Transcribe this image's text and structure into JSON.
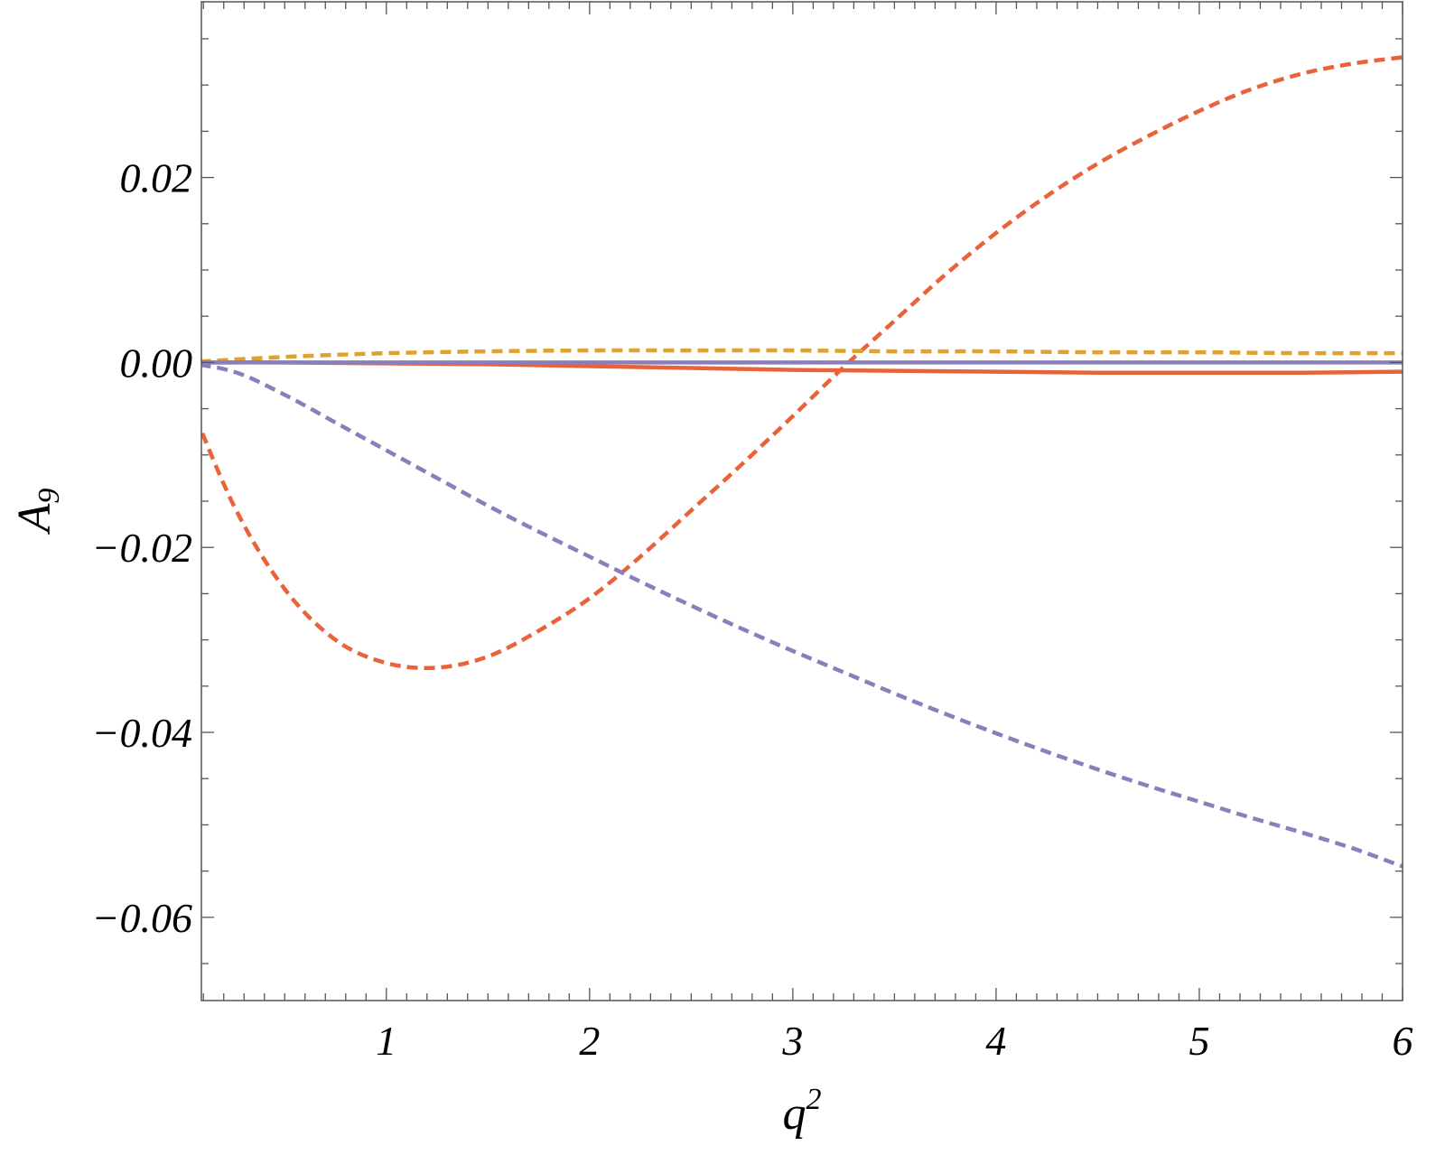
{
  "chart_data": {
    "type": "line",
    "xlabel": "q",
    "xlabel_sup": "2",
    "ylabel": "A",
    "ylabel_sub": "9",
    "xlim": [
      0.09,
      6.0
    ],
    "ylim": [
      -0.069,
      0.039
    ],
    "x_ticks": [
      {
        "value": 1,
        "label": "1"
      },
      {
        "value": 2,
        "label": "2"
      },
      {
        "value": 3,
        "label": "3"
      },
      {
        "value": 4,
        "label": "4"
      },
      {
        "value": 5,
        "label": "5"
      },
      {
        "value": 6,
        "label": "6"
      }
    ],
    "y_ticks": [
      {
        "value": 0.02,
        "label": "0.02"
      },
      {
        "value": 0.0,
        "label": "0.00"
      },
      {
        "value": -0.02,
        "label": "−0.02"
      },
      {
        "value": -0.04,
        "label": "−0.04"
      },
      {
        "value": -0.06,
        "label": "−0.06"
      }
    ],
    "grid": false,
    "series": [
      {
        "color": "#e8623a",
        "style": "dashed",
        "x": [
          0.0,
          0.25,
          0.5,
          0.75,
          1.0,
          1.25,
          1.5,
          1.75,
          2.0,
          2.25,
          2.5,
          2.75,
          3.0,
          3.25,
          3.5,
          3.75,
          4.0,
          4.25,
          4.5,
          4.75,
          5.0,
          5.25,
          5.5,
          5.75,
          6.0
        ],
        "y": [
          -0.0025,
          -0.0155,
          -0.0245,
          -0.03,
          -0.0325,
          -0.033,
          -0.0318,
          -0.029,
          -0.0255,
          -0.021,
          -0.016,
          -0.011,
          -0.0058,
          -0.0005,
          0.0045,
          0.0095,
          0.014,
          0.018,
          0.0215,
          0.0245,
          0.0272,
          0.0295,
          0.0312,
          0.0323,
          0.033
        ]
      },
      {
        "color": "#8a7fbc",
        "style": "dashed",
        "x": [
          0.0,
          0.25,
          0.5,
          0.75,
          1.0,
          1.25,
          1.5,
          1.75,
          2.0,
          2.25,
          2.5,
          2.75,
          3.0,
          3.25,
          3.5,
          3.75,
          4.0,
          4.25,
          4.5,
          4.75,
          5.0,
          5.25,
          5.5,
          5.75,
          6.0
        ],
        "y": [
          0.0,
          -0.001,
          -0.0035,
          -0.0065,
          -0.0095,
          -0.0125,
          -0.0155,
          -0.0183,
          -0.021,
          -0.0237,
          -0.0263,
          -0.0288,
          -0.0312,
          -0.0335,
          -0.0358,
          -0.038,
          -0.0401,
          -0.0421,
          -0.044,
          -0.0458,
          -0.0475,
          -0.0492,
          -0.0508,
          -0.0525,
          -0.0545
        ]
      },
      {
        "color": "#e0a130",
        "style": "dashed",
        "x": [
          0.0,
          0.5,
          1.0,
          1.5,
          2.0,
          2.5,
          3.0,
          3.5,
          4.0,
          4.5,
          5.0,
          5.5,
          6.0
        ],
        "y": [
          0.0,
          0.0006,
          0.001,
          0.0012,
          0.0013,
          0.0013,
          0.0013,
          0.0012,
          0.0012,
          0.0011,
          0.0011,
          0.001,
          0.001
        ]
      },
      {
        "color": "#e8623a",
        "style": "solid",
        "x": [
          0.0,
          0.5,
          1.0,
          1.5,
          2.0,
          2.5,
          3.0,
          3.5,
          4.0,
          4.5,
          5.0,
          5.5,
          6.0
        ],
        "y": [
          0.0,
          0.0,
          -0.0001,
          -0.0002,
          -0.0004,
          -0.0006,
          -0.0008,
          -0.0009,
          -0.001,
          -0.0011,
          -0.0011,
          -0.0011,
          -0.001
        ]
      },
      {
        "color": "#8a7fbc",
        "style": "solid",
        "x": [
          0.0,
          1.0,
          2.0,
          3.0,
          4.0,
          5.0,
          6.0
        ],
        "y": [
          0.0,
          0.0,
          0.0,
          0.0,
          0.0,
          0.0,
          0.0
        ]
      }
    ]
  }
}
